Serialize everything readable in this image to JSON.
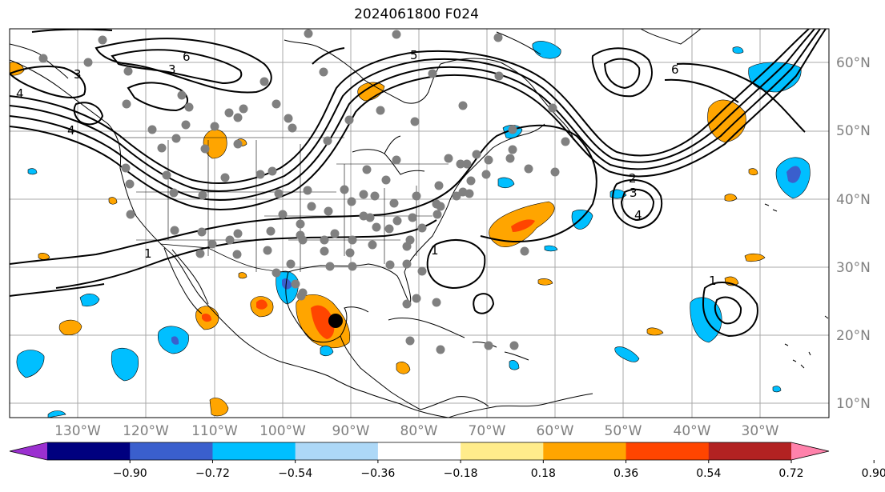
{
  "title": "2024061800 F024",
  "map": {
    "lon_labels": [
      "130°W",
      "120°W",
      "110°W",
      "100°W",
      "90°W",
      "80°W",
      "70°W",
      "60°W",
      "50°W",
      "40°W",
      "30°W"
    ],
    "lat_labels": [
      "60°N",
      "50°N",
      "40°N",
      "30°N",
      "20°N",
      "10°N"
    ],
    "contour_labels": [
      "1",
      "2",
      "3",
      "4",
      "5",
      "6"
    ],
    "marker": "storm-center-black-dot"
  },
  "colorbar": {
    "ticks": [
      "−0.90",
      "−0.72",
      "−0.54",
      "−0.36",
      "−0.18",
      "0.18",
      "0.36",
      "0.54",
      "0.72",
      "0.90"
    ],
    "colors": [
      "#9b30d0",
      "#00007f",
      "#3a5fcd",
      "#00bfff",
      "#add8f7",
      "#ffffff",
      "#ffec8b",
      "#ffa500",
      "#ff4500",
      "#b22222",
      "#ff82ab"
    ]
  }
}
